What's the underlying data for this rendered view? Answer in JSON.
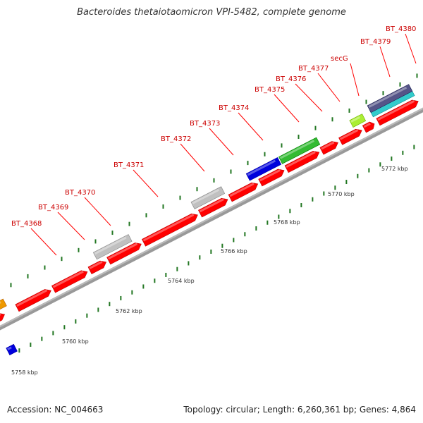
{
  "title": "Bacteroides thetaiotaomicron VPI-5482, complete genome",
  "footer": {
    "accession": "Accession: NC_004663",
    "summary": "Topology: circular; Length: 6,260,361 bp; Genes: 4,864"
  },
  "colors": {
    "cds": "#ff0000",
    "label": "#cc0000",
    "tick": "#227722",
    "backbone": "#999999",
    "gray_feature": "#c0c0c0",
    "blue_feature": "#0000dd",
    "green_feature": "#33bb33",
    "lime_feature": "#aaee33",
    "orange_feature": "#ee9900",
    "cyan_feature": "#33cccc",
    "navy_feature": "#555588"
  },
  "scale_labels": [
    "5758 kbp",
    "5760 kbp",
    "5762 kbp",
    "5764 kbp",
    "5766 kbp",
    "5768 kbp",
    "5770 kbp",
    "5772 kbp"
  ],
  "genes": [
    {
      "label": "BT_4368"
    },
    {
      "label": "BT_4369"
    },
    {
      "label": "BT_4370"
    },
    {
      "label": "BT_4371"
    },
    {
      "label": "BT_4372"
    },
    {
      "label": "BT_4373"
    },
    {
      "label": "BT_4374"
    },
    {
      "label": "BT_4375"
    },
    {
      "label": "BT_4376"
    },
    {
      "label": "BT_4377"
    },
    {
      "label": "secG"
    },
    {
      "label": "BT_4379"
    },
    {
      "label": "BT_4380"
    }
  ]
}
